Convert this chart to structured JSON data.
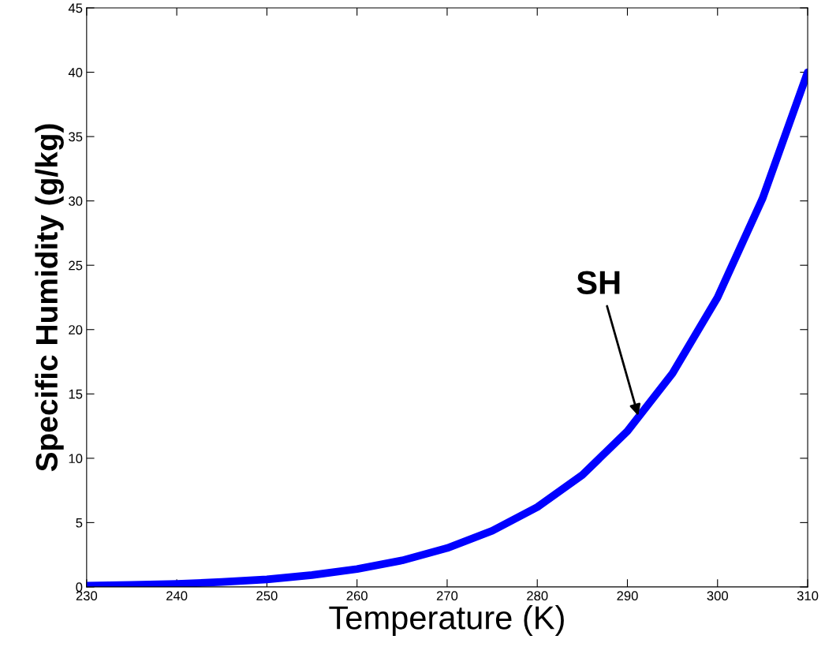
{
  "chart_data": {
    "type": "line",
    "xlabel": "Temperature (K)",
    "ylabel": "Specific Humidity (g/kg)",
    "x": [
      230,
      235,
      240,
      245,
      250,
      255,
      260,
      265,
      270,
      275,
      280,
      285,
      290,
      295,
      300,
      305,
      310
    ],
    "series": [
      {
        "color": "#0000ff",
        "values": [
          0.1,
          0.15,
          0.23,
          0.38,
          0.59,
          0.92,
          1.39,
          2.06,
          3.02,
          4.36,
          6.2,
          8.7,
          12.1,
          16.6,
          22.5,
          30.2,
          40.0
        ]
      }
    ],
    "xlim": [
      230,
      310
    ],
    "xticks": [
      230,
      240,
      250,
      260,
      270,
      280,
      290,
      300,
      310
    ],
    "ylim": [
      0,
      45
    ],
    "yticks": [
      0,
      5,
      10,
      15,
      20,
      25,
      30,
      35,
      40,
      45
    ],
    "annotations": [
      {
        "text": "SH",
        "x": 291.2,
        "y": 13.3
      }
    ],
    "grid": false,
    "legend": false,
    "marker": "none",
    "line_style": "solid"
  }
}
